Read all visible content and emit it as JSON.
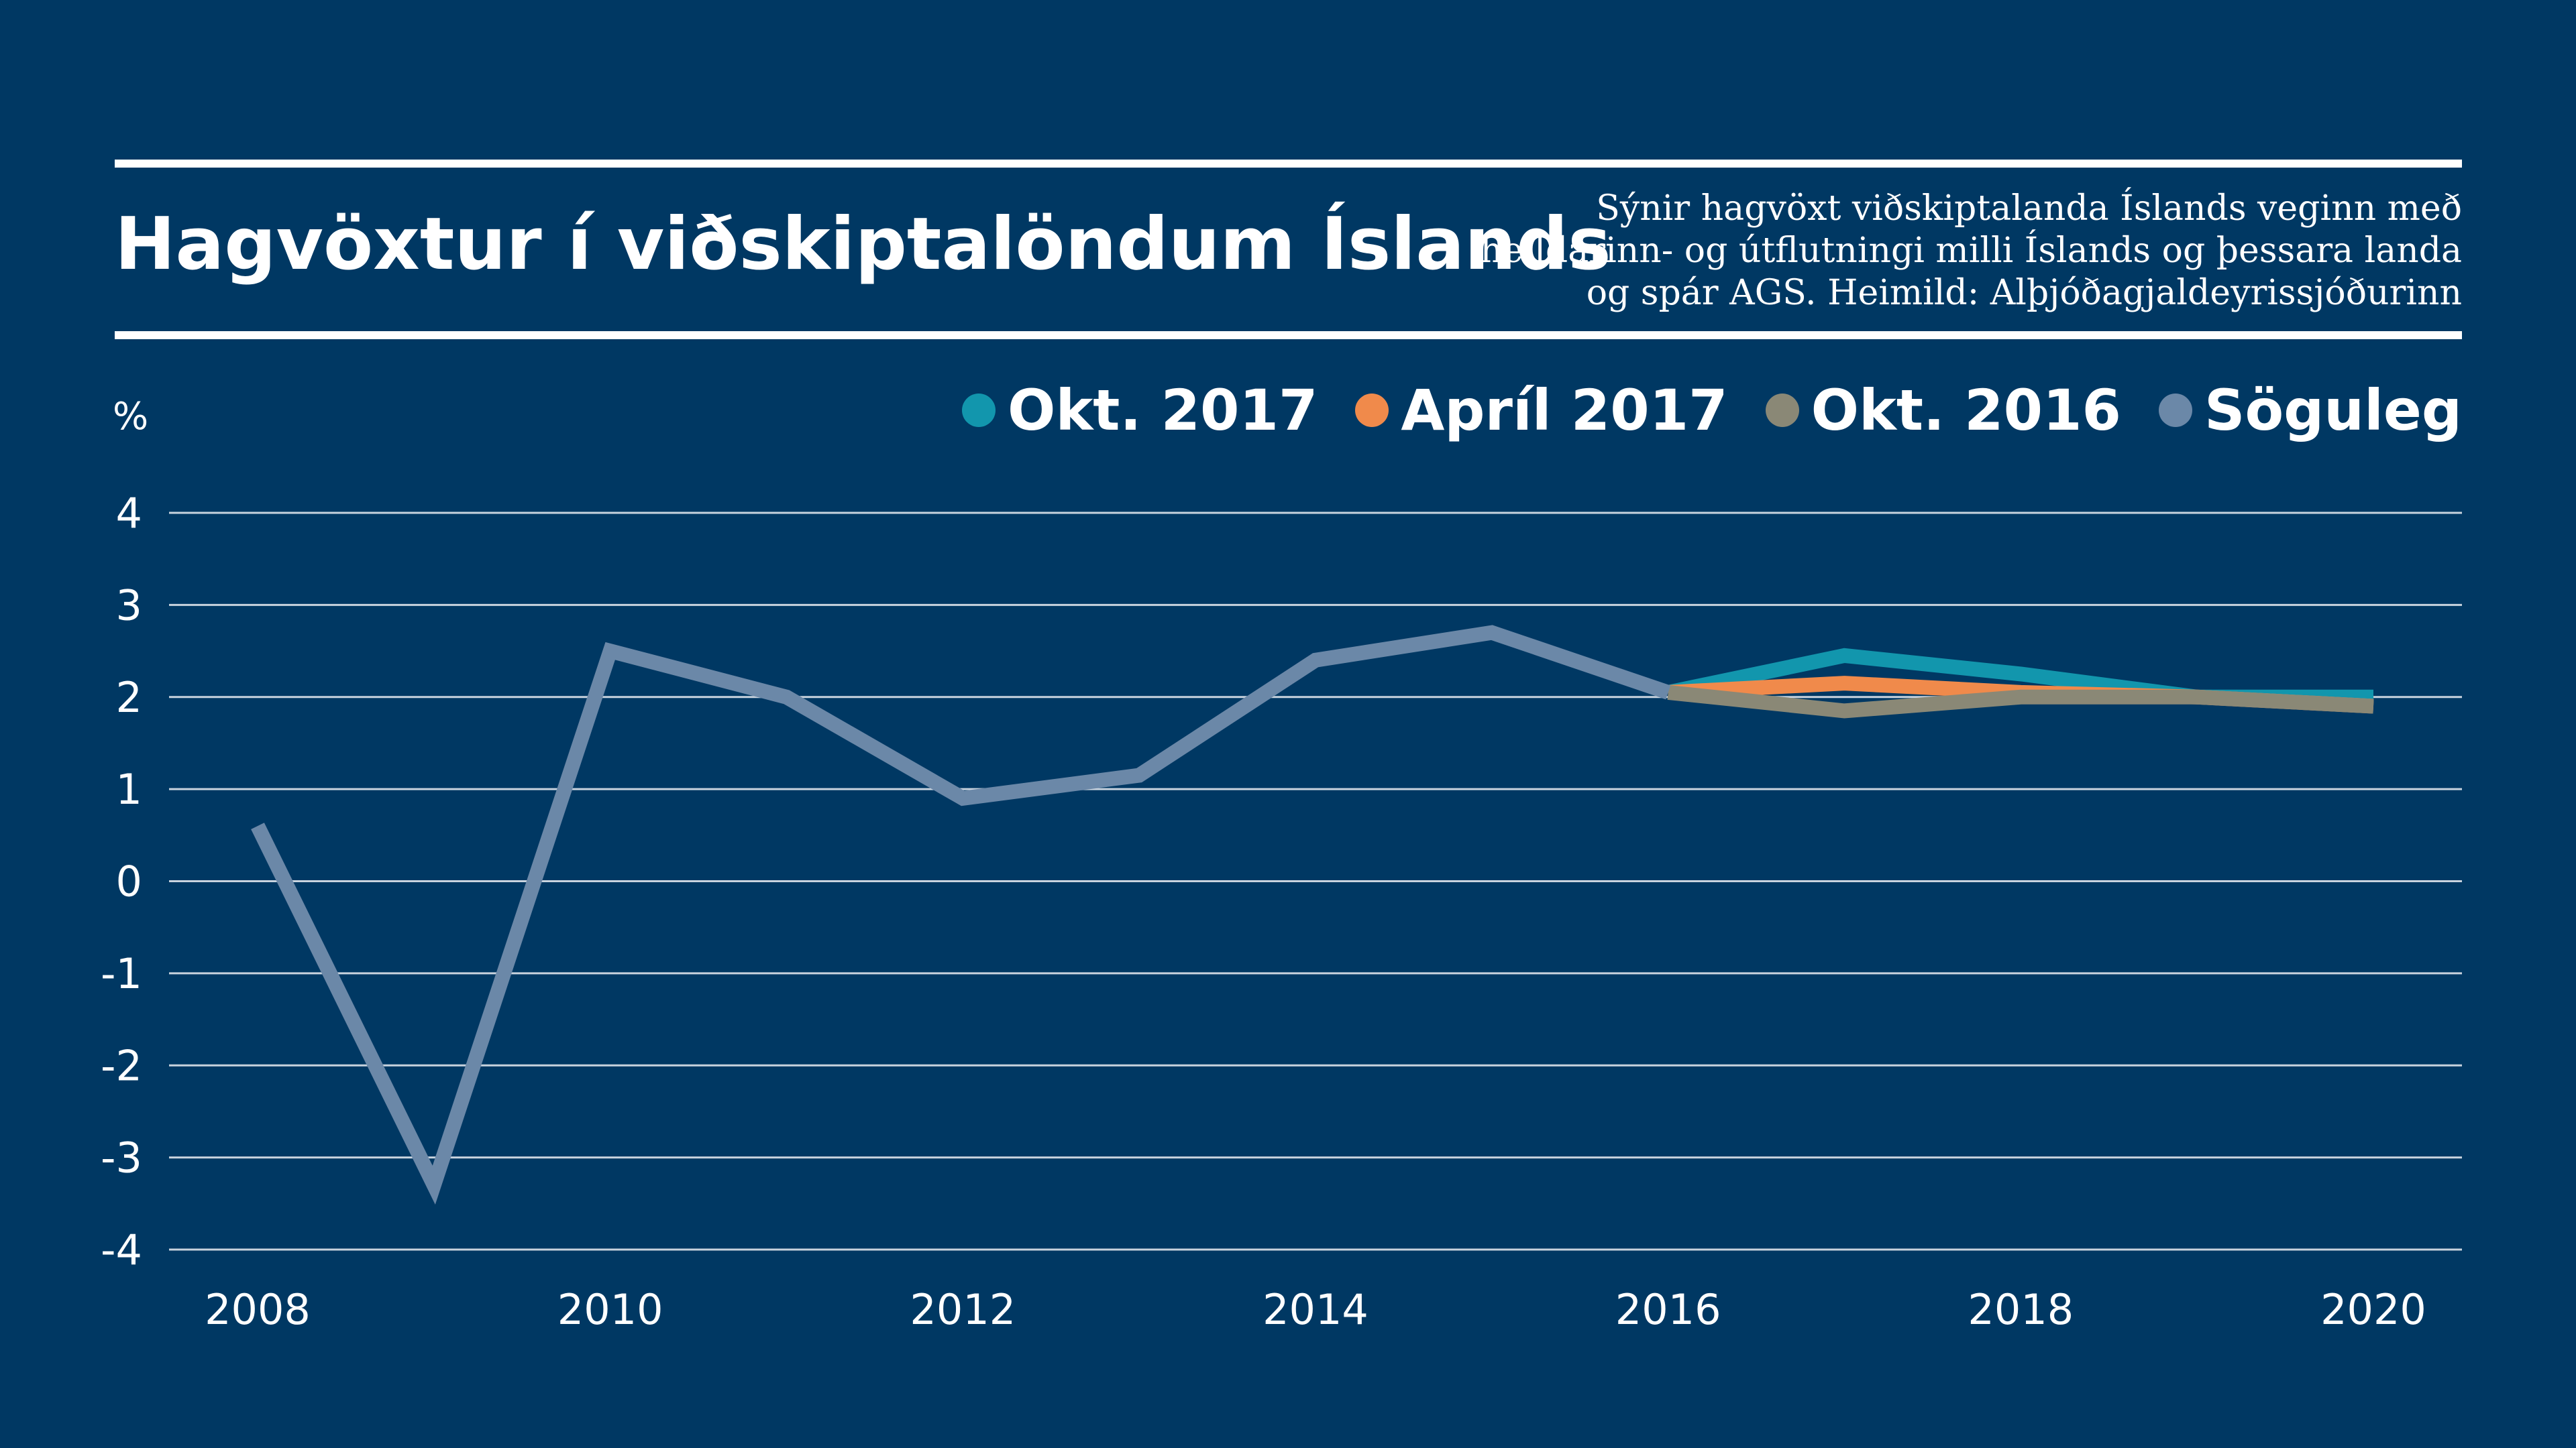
{
  "header": {
    "title": "Hagvöxtur í viðskiptalöndum Íslands",
    "subtitle_lines": [
      "Sýnir hagvöxt viðskiptalanda Íslands veginn með",
      "heildarinn- og útflutningi milli Íslands og þessara landa",
      "og spár AGS. Heimild: Alþjóðagjaldeyrissjóðurinn"
    ]
  },
  "colors": {
    "background": "#003863",
    "grid": "#c9d3de",
    "text": "#ffffff"
  },
  "chart_data": {
    "type": "line",
    "ylabel": "%",
    "xlabel": "",
    "ylim": [
      -4,
      4
    ],
    "xlim": [
      2008,
      2020
    ],
    "yticks": [
      "4",
      "3",
      "2",
      "1",
      "0",
      "-1",
      "-2",
      "-3",
      "-4"
    ],
    "xticks": [
      "2008",
      "2010",
      "2012",
      "2014",
      "2016",
      "2018",
      "2020"
    ],
    "grid": true,
    "legend_position": "top-right",
    "series": [
      {
        "name": "Okt. 2017",
        "color": "#1296ad",
        "x": [
          2016,
          2017,
          2018,
          2019,
          2020
        ],
        "values": [
          2.05,
          2.45,
          2.25,
          2.0,
          2.0
        ]
      },
      {
        "name": "Apríl 2017",
        "color": "#f08a4b",
        "x": [
          2016,
          2017,
          2018,
          2019,
          2020
        ],
        "values": [
          2.05,
          2.15,
          2.05,
          2.0,
          1.9
        ]
      },
      {
        "name": "Okt. 2016",
        "color": "#8a8876",
        "x": [
          2016,
          2017,
          2018,
          2019,
          2020
        ],
        "values": [
          2.05,
          1.85,
          2.0,
          2.0,
          1.9
        ]
      },
      {
        "name": "Söguleg",
        "color": "#6b88a8",
        "x": [
          2008,
          2009,
          2010,
          2011,
          2012,
          2013,
          2014,
          2015,
          2016
        ],
        "values": [
          0.6,
          -3.3,
          2.5,
          2.0,
          0.9,
          1.15,
          2.4,
          2.7,
          2.05
        ]
      }
    ]
  }
}
